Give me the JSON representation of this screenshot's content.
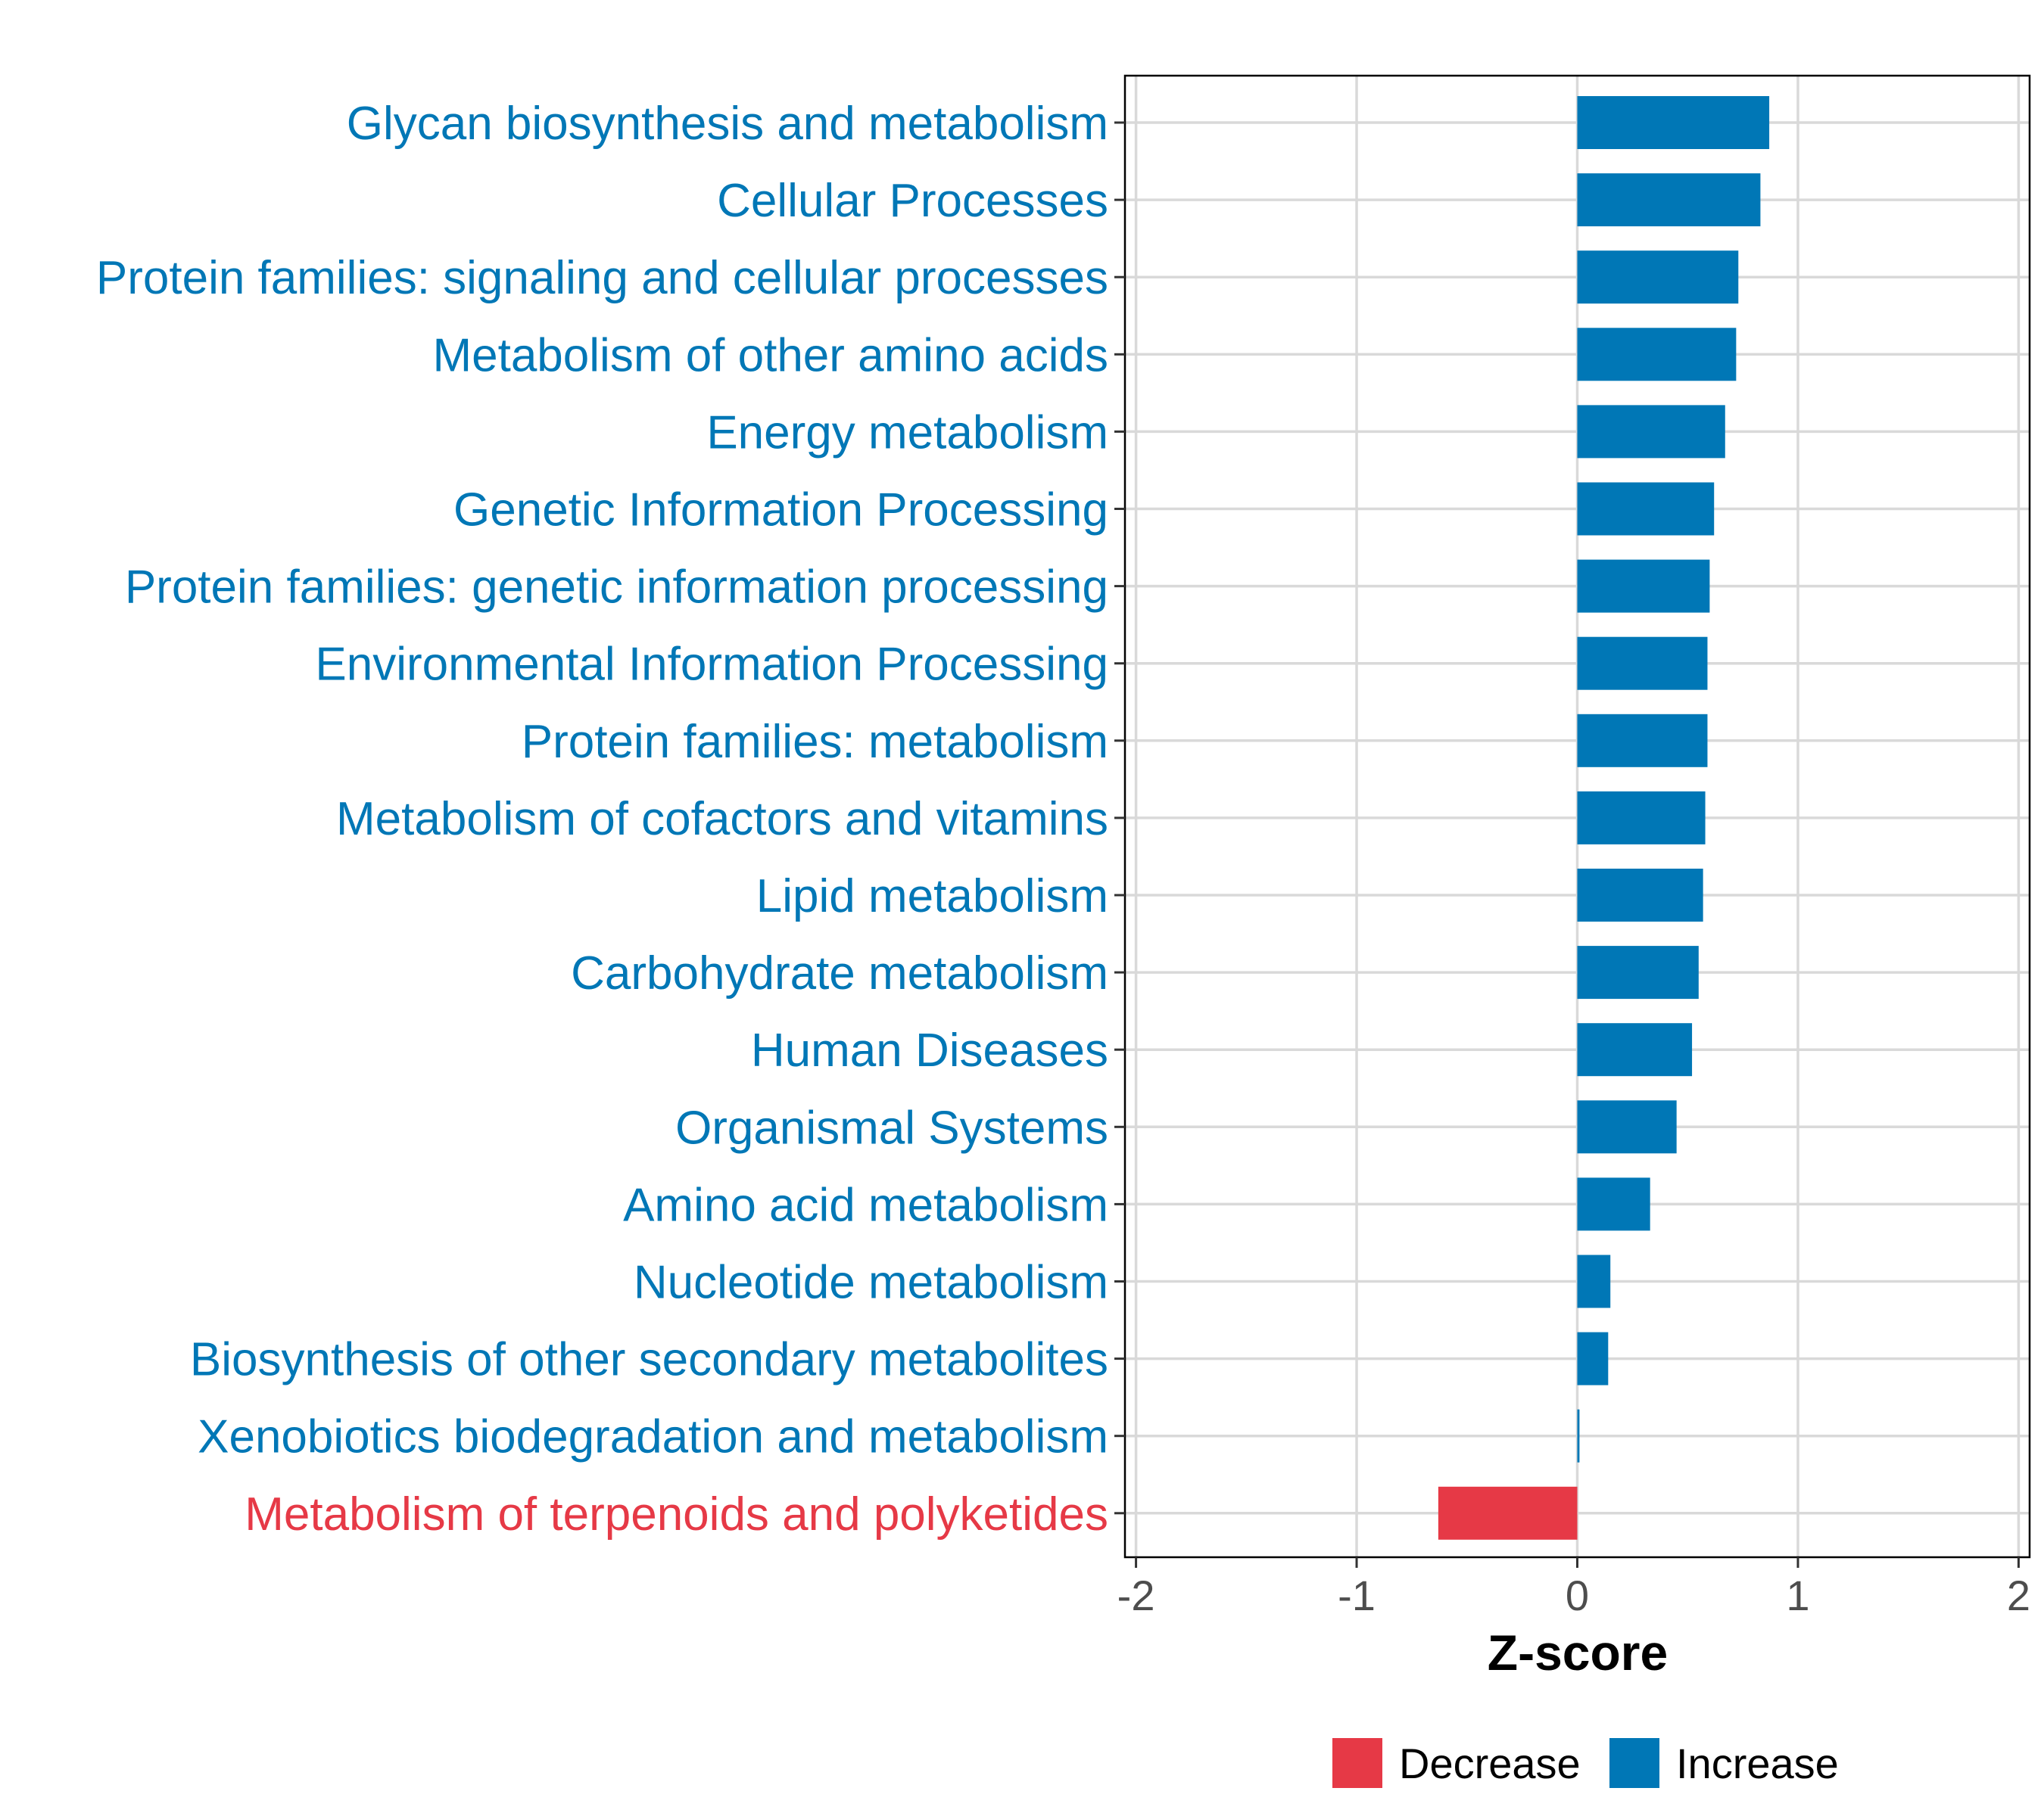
{
  "chart_data": {
    "type": "bar",
    "orientation": "horizontal",
    "title": "",
    "xlabel": "Z-score",
    "ylabel": "",
    "xlim": [
      -2.05,
      2.05
    ],
    "xticks": [
      -2,
      -1,
      0,
      1,
      2
    ],
    "xtick_labels": [
      "-2",
      "-1",
      "0",
      "1",
      "2"
    ],
    "grid": true,
    "legend_position": "bottom",
    "categories": [
      "Glycan biosynthesis and metabolism",
      "Cellular Processes",
      "Protein families: signaling and cellular processes",
      "Metabolism of other amino acids",
      "Energy metabolism",
      "Genetic Information Processing",
      "Protein families: genetic information processing",
      "Environmental Information Processing",
      "Protein families: metabolism",
      "Metabolism of cofactors and vitamins",
      "Lipid metabolism",
      "Carbohydrate metabolism",
      "Human Diseases",
      "Organismal Systems",
      "Amino acid metabolism",
      "Nucleotide metabolism",
      "Biosynthesis of other secondary metabolites",
      "Xenobiotics biodegradation and metabolism",
      "Metabolism of terpenoids and polyketides"
    ],
    "values": [
      0.87,
      0.83,
      0.73,
      0.72,
      0.67,
      0.62,
      0.6,
      0.59,
      0.59,
      0.58,
      0.57,
      0.55,
      0.52,
      0.45,
      0.33,
      0.15,
      0.14,
      0.01,
      -0.63
    ],
    "groups": [
      "Increase",
      "Increase",
      "Increase",
      "Increase",
      "Increase",
      "Increase",
      "Increase",
      "Increase",
      "Increase",
      "Increase",
      "Increase",
      "Increase",
      "Increase",
      "Increase",
      "Increase",
      "Increase",
      "Increase",
      "Increase",
      "Decrease"
    ],
    "legend": [
      {
        "name": "Decrease",
        "color": "#e63946"
      },
      {
        "name": "Increase",
        "color": "#0077b6"
      }
    ]
  }
}
